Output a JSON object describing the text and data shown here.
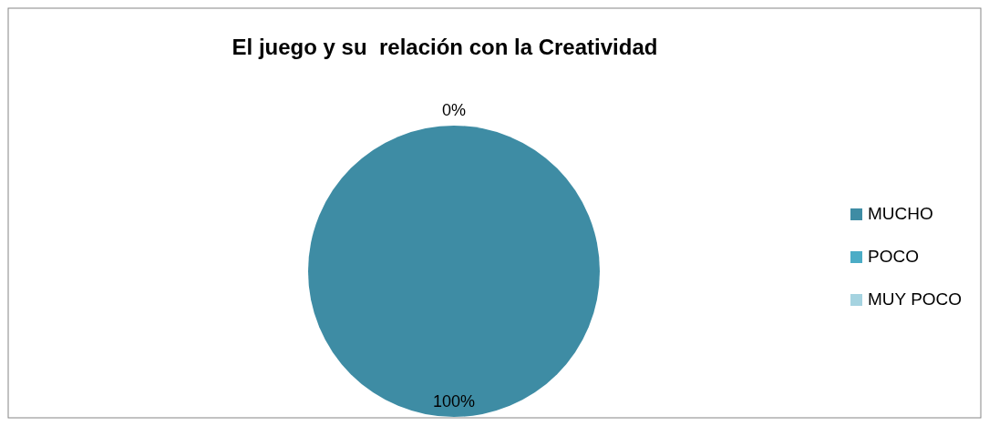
{
  "chart_data": {
    "type": "pie",
    "title": "El juego y su  relación con la Creatividad",
    "categories": [
      "MUCHO",
      "POCO",
      "MUY POCO"
    ],
    "values": [
      100,
      0,
      0
    ],
    "colors": [
      "#3e8ca4",
      "#4bacc6",
      "#a5d3e0"
    ],
    "value_labels": [
      "100%",
      "0%",
      null
    ],
    "legend": "right"
  }
}
